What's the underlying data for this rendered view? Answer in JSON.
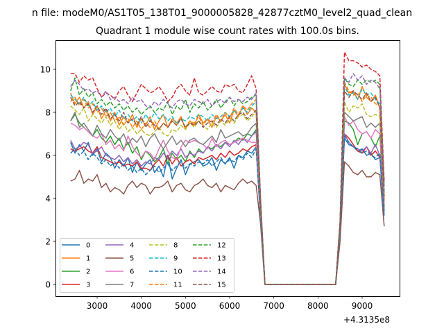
{
  "chart_data": {
    "type": "line",
    "suptitle": "n file: modeM0/AS1T05_138T01_9000005828_42877cztM0_level2_quad_clean",
    "title": "Quadrant 1 module wise count rates with 100.0s bins.",
    "xlabel": "",
    "ylabel": "",
    "x_offset_label": "+4.3135e8",
    "x_start": 2400,
    "x_step": 100,
    "xlim": [
      2058,
      9848
    ],
    "ylim": [
      -0.55,
      11.35
    ],
    "xticks": [
      3000,
      4000,
      5000,
      6000,
      7000,
      8000,
      9000
    ],
    "yticks": [
      0,
      2,
      4,
      6,
      8,
      10
    ],
    "grid": false,
    "legend_position": "lower-left",
    "series": [
      {
        "name": "0",
        "color": "#1f77b4",
        "style": "solid",
        "values": [
          6.6,
          6.1,
          6.5,
          6.2,
          6.6,
          6.0,
          6.3,
          5.7,
          6.1,
          5.9,
          5.4,
          5.8,
          5.5,
          5.9,
          5.2,
          5.7,
          5.3,
          5.6,
          5.8,
          5.2,
          5.5,
          5.0,
          6.0,
          4.9,
          5.4,
          5.8,
          5.1,
          5.6,
          5.7,
          5.8,
          5.5,
          5.6,
          5.9,
          5.3,
          5.8,
          5.6,
          5.9,
          5.4,
          6.0,
          5.9,
          6.2,
          6.1,
          6.4,
          3.0,
          0,
          0,
          0,
          0,
          0,
          0,
          0,
          0,
          0,
          0,
          0,
          0,
          0,
          0,
          0,
          0,
          0,
          2.3,
          6.8,
          6.5,
          6.4,
          6.2,
          6.3,
          6.0,
          6.1,
          5.8,
          5.9,
          3.2
        ]
      },
      {
        "name": "1",
        "color": "#ff7f0e",
        "style": "solid",
        "values": [
          8.9,
          8.4,
          8.7,
          8.2,
          8.5,
          7.9,
          8.3,
          7.7,
          8.1,
          7.6,
          8.0,
          7.4,
          7.8,
          7.5,
          7.9,
          7.3,
          7.7,
          7.4,
          7.8,
          7.2,
          7.6,
          7.9,
          7.3,
          7.7,
          7.5,
          7.8,
          7.2,
          7.6,
          7.4,
          7.9,
          7.5,
          7.7,
          7.3,
          7.8,
          7.6,
          7.9,
          7.5,
          8.1,
          7.8,
          8.3,
          7.9,
          8.2,
          8.0,
          3.5,
          0,
          0,
          0,
          0,
          0,
          0,
          0,
          0,
          0,
          0,
          0,
          0,
          0,
          0,
          0,
          0,
          0,
          2.6,
          9.3,
          8.9,
          9.0,
          8.6,
          9.2,
          8.7,
          8.5,
          8.8,
          8.2,
          4.0
        ]
      },
      {
        "name": "2",
        "color": "#2ca02c",
        "style": "solid",
        "values": [
          7.6,
          7.9,
          7.5,
          7.3,
          7.1,
          6.9,
          7.2,
          6.8,
          6.6,
          6.9,
          6.5,
          6.8,
          6.3,
          6.6,
          6.1,
          6.4,
          5.8,
          6.2,
          6.0,
          5.7,
          5.9,
          6.3,
          5.6,
          6.1,
          5.8,
          6.0,
          5.7,
          6.2,
          5.9,
          6.3,
          6.1,
          6.4,
          6.3,
          6.5,
          6.4,
          6.6,
          6.5,
          6.6,
          6.8,
          6.7,
          7.0,
          6.9,
          7.2,
          3.3,
          0,
          0,
          0,
          0,
          0,
          0,
          0,
          0,
          0,
          0,
          0,
          0,
          0,
          0,
          0,
          0,
          0,
          2.4,
          7.6,
          7.5,
          7.2,
          6.5,
          7.0,
          7.1,
          6.8,
          6.4,
          6.9,
          3.6
        ]
      },
      {
        "name": "3",
        "color": "#d62728",
        "style": "solid",
        "values": [
          6.3,
          6.2,
          6.3,
          6.4,
          6.2,
          6.1,
          6.4,
          5.9,
          5.8,
          5.7,
          5.6,
          5.7,
          5.5,
          5.6,
          5.5,
          5.7,
          5.4,
          5.4,
          5.3,
          5.6,
          5.8,
          5.5,
          6.0,
          5.6,
          5.9,
          5.5,
          5.7,
          5.8,
          5.6,
          5.9,
          5.8,
          5.9,
          6.0,
          5.8,
          6.1,
          5.9,
          6.2,
          6.0,
          6.1,
          6.3,
          6.2,
          6.4,
          6.5,
          3.1,
          0,
          0,
          0,
          0,
          0,
          0,
          0,
          0,
          0,
          0,
          0,
          0,
          0,
          0,
          0,
          0,
          0,
          2.5,
          7.0,
          6.8,
          6.5,
          6.2,
          6.1,
          6.4,
          6.0,
          6.2,
          5.9,
          4.4
        ]
      },
      {
        "name": "4",
        "color": "#9467bd",
        "style": "solid",
        "values": [
          6.7,
          6.3,
          6.4,
          6.6,
          6.5,
          6.1,
          6.2,
          6.4,
          6.0,
          5.9,
          5.8,
          6.0,
          5.7,
          5.9,
          5.6,
          5.8,
          5.5,
          5.7,
          5.6,
          5.9,
          5.8,
          6.1,
          5.9,
          6.2,
          6.0,
          6.3,
          5.9,
          6.1,
          6.0,
          6.2,
          6.1,
          6.4,
          6.2,
          6.5,
          6.3,
          6.6,
          6.4,
          6.7,
          6.5,
          6.8,
          6.6,
          6.9,
          7.1,
          3.4,
          0,
          0,
          0,
          0,
          0,
          0,
          0,
          0,
          0,
          0,
          0,
          0,
          0,
          0,
          0,
          0,
          0,
          2.4,
          7.0,
          6.6,
          6.4,
          6.3,
          6.2,
          6.4,
          6.1,
          6.5,
          6.0,
          3.5
        ]
      },
      {
        "name": "5",
        "color": "#8c564b",
        "style": "solid",
        "values": [
          4.8,
          4.9,
          5.3,
          4.7,
          4.9,
          4.8,
          5.1,
          4.5,
          4.7,
          4.3,
          4.5,
          4.4,
          4.2,
          4.6,
          4.8,
          4.5,
          4.7,
          4.6,
          4.2,
          4.5,
          4.5,
          4.6,
          4.8,
          4.3,
          4.6,
          4.7,
          4.4,
          4.3,
          4.6,
          4.7,
          4.9,
          4.6,
          4.5,
          4.7,
          4.3,
          4.6,
          4.5,
          4.4,
          4.7,
          4.9,
          4.7,
          4.8,
          4.6,
          2.8,
          0,
          0,
          0,
          0,
          0,
          0,
          0,
          0,
          0,
          0,
          0,
          0,
          0,
          0,
          0,
          0,
          0,
          2.0,
          5.7,
          5.5,
          5.2,
          5.1,
          5.3,
          5.0,
          5.0,
          5.2,
          5.1,
          2.7
        ]
      },
      {
        "name": "6",
        "color": "#e377c2",
        "style": "solid",
        "values": [
          7.5,
          7.4,
          7.2,
          7.3,
          7.1,
          6.9,
          6.8,
          7.0,
          6.5,
          6.7,
          6.3,
          6.5,
          6.2,
          6.9,
          6.4,
          6.1,
          5.9,
          6.2,
          6.1,
          5.8,
          6.3,
          6.7,
          6.2,
          5.9,
          5.8,
          6.4,
          6.7,
          6.6,
          6.7,
          6.6,
          6.5,
          6.3,
          6.8,
          6.4,
          6.6,
          6.7,
          6.5,
          6.6,
          6.7,
          6.8,
          6.7,
          6.6,
          6.6,
          3.2,
          0,
          0,
          0,
          0,
          0,
          0,
          0,
          0,
          0,
          0,
          0,
          0,
          0,
          0,
          0,
          0,
          0,
          2.6,
          7.8,
          7.4,
          7.6,
          7.2,
          7.0,
          7.1,
          6.8,
          7.2,
          7.0,
          3.8
        ]
      },
      {
        "name": "7",
        "color": "#7f7f7f",
        "style": "solid",
        "values": [
          7.6,
          8.0,
          7.3,
          7.5,
          7.2,
          6.9,
          7.4,
          7.0,
          6.8,
          7.2,
          6.9,
          6.7,
          7.0,
          6.5,
          6.8,
          6.6,
          6.9,
          6.4,
          6.8,
          7.0,
          6.6,
          6.3,
          6.6,
          6.9,
          6.5,
          6.7,
          6.4,
          6.7,
          6.8,
          6.6,
          6.5,
          6.7,
          6.9,
          6.6,
          7.2,
          6.8,
          6.9,
          7.0,
          7.1,
          6.9,
          7.0,
          7.3,
          7.5,
          3.5,
          0,
          0,
          0,
          0,
          0,
          0,
          0,
          0,
          0,
          0,
          0,
          0,
          0,
          0,
          0,
          0,
          0,
          2.6,
          8.0,
          7.8,
          7.6,
          7.7,
          7.8,
          7.3,
          7.5,
          7.3,
          7.5,
          3.9
        ]
      },
      {
        "name": "8",
        "color": "#bcbd22",
        "style": "dashed",
        "values": [
          8.3,
          8.1,
          7.9,
          8.2,
          7.6,
          7.9,
          7.7,
          7.5,
          7.8,
          7.4,
          7.6,
          7.2,
          7.5,
          7.1,
          7.3,
          7.0,
          7.2,
          7.0,
          6.9,
          7.1,
          7.3,
          7.0,
          6.9,
          7.2,
          7.1,
          7.4,
          7.2,
          7.5,
          7.3,
          7.6,
          7.4,
          7.2,
          7.5,
          7.3,
          7.6,
          7.4,
          7.7,
          7.5,
          7.8,
          7.9,
          7.6,
          7.8,
          8.0,
          3.6,
          0,
          0,
          0,
          0,
          0,
          0,
          0,
          0,
          0,
          0,
          0,
          0,
          0,
          0,
          0,
          0,
          0,
          2.7,
          8.5,
          8.0,
          8.3,
          8.2,
          8.4,
          7.9,
          7.8,
          7.9,
          7.8,
          4.2
        ]
      },
      {
        "name": "9",
        "color": "#17becf",
        "style": "dashed",
        "values": [
          8.8,
          8.6,
          8.4,
          8.7,
          8.3,
          8.5,
          8.1,
          8.3,
          8.0,
          8.2,
          7.8,
          8.1,
          7.7,
          7.9,
          7.6,
          7.8,
          7.5,
          7.9,
          7.6,
          8.0,
          7.7,
          7.9,
          7.6,
          7.8,
          7.5,
          7.7,
          7.6,
          7.8,
          7.7,
          7.9,
          7.8,
          7.6,
          7.9,
          7.7,
          7.8,
          8.0,
          7.8,
          8.1,
          7.9,
          8.2,
          8.0,
          8.3,
          8.5,
          3.7,
          0,
          0,
          0,
          0,
          0,
          0,
          0,
          0,
          0,
          0,
          0,
          0,
          0,
          0,
          0,
          0,
          0,
          2.8,
          9.2,
          8.8,
          8.9,
          8.6,
          9.1,
          8.8,
          8.9,
          8.6,
          8.4,
          4.3
        ]
      },
      {
        "name": "10",
        "color": "#1f77b4",
        "style": "dashed",
        "values": [
          6.1,
          6.3,
          6.0,
          6.2,
          5.8,
          6.1,
          5.9,
          5.6,
          5.8,
          5.5,
          5.7,
          5.4,
          5.6,
          5.3,
          5.5,
          5.2,
          5.4,
          5.1,
          5.3,
          5.5,
          5.2,
          5.4,
          5.6,
          5.3,
          5.5,
          5.7,
          5.4,
          5.6,
          5.5,
          5.7,
          5.6,
          5.8,
          5.5,
          5.7,
          5.9,
          5.6,
          5.8,
          5.7,
          6.0,
          5.8,
          6.1,
          5.9,
          6.3,
          3.0,
          0,
          0,
          0,
          0,
          0,
          0,
          0,
          0,
          0,
          0,
          0,
          0,
          0,
          0,
          0,
          0,
          0,
          2.3,
          6.9,
          6.6,
          6.4,
          6.3,
          6.1,
          6.2,
          6.0,
          5.9,
          6.1,
          3.4
        ]
      },
      {
        "name": "11",
        "color": "#ff7f0e",
        "style": "dashed",
        "values": [
          8.5,
          8.7,
          8.3,
          8.6,
          8.2,
          8.4,
          8.0,
          8.2,
          7.8,
          8.0,
          7.6,
          7.8,
          7.4,
          7.7,
          7.3,
          7.6,
          7.2,
          7.5,
          7.3,
          7.6,
          7.2,
          7.5,
          7.3,
          7.6,
          7.4,
          7.7,
          7.3,
          7.6,
          7.5,
          7.8,
          7.4,
          7.7,
          7.5,
          7.9,
          7.6,
          8.0,
          7.7,
          8.2,
          7.9,
          8.3,
          8.1,
          8.4,
          8.6,
          3.6,
          0,
          0,
          0,
          0,
          0,
          0,
          0,
          0,
          0,
          0,
          0,
          0,
          0,
          0,
          0,
          0,
          0,
          2.7,
          9.4,
          9.0,
          8.8,
          8.9,
          8.5,
          8.8,
          8.7,
          8.4,
          8.3,
          4.0
        ]
      },
      {
        "name": "12",
        "color": "#2ca02c",
        "style": "dashed",
        "values": [
          9.0,
          9.6,
          8.8,
          9.1,
          8.7,
          8.9,
          8.4,
          8.6,
          8.3,
          8.5,
          8.2,
          8.4,
          8.1,
          8.3,
          8.0,
          8.2,
          7.9,
          8.1,
          8.3,
          8.0,
          8.2,
          8.1,
          8.5,
          7.9,
          8.3,
          8.1,
          8.6,
          8.0,
          8.4,
          8.2,
          8.5,
          8.1,
          8.3,
          8.6,
          8.2,
          8.5,
          8.7,
          8.3,
          8.6,
          8.4,
          8.5,
          8.7,
          8.8,
          3.9,
          0,
          0,
          0,
          0,
          0,
          0,
          0,
          0,
          0,
          0,
          0,
          0,
          0,
          0,
          0,
          0,
          0,
          2.9,
          9.6,
          9.3,
          9.2,
          9.5,
          9.3,
          9.5,
          9.4,
          9.5,
          9.3,
          4.6
        ]
      },
      {
        "name": "13",
        "color": "#d62728",
        "style": "dashed",
        "values": [
          9.8,
          9.8,
          9.4,
          9.7,
          9.5,
          9.6,
          9.1,
          8.7,
          8.9,
          8.8,
          8.6,
          9.0,
          9.2,
          8.8,
          8.5,
          8.9,
          9.3,
          9.1,
          8.9,
          9.0,
          9.2,
          8.9,
          8.5,
          8.7,
          9.1,
          9.3,
          9.0,
          8.8,
          9.6,
          8.9,
          8.8,
          9.0,
          9.2,
          9.0,
          8.9,
          9.3,
          9.2,
          9.3,
          9.0,
          8.9,
          9.3,
          9.7,
          9.1,
          4.0,
          0,
          0,
          0,
          0,
          0,
          0,
          0,
          0,
          0,
          0,
          0,
          0,
          0,
          0,
          0,
          0,
          0,
          3.0,
          10.8,
          10.4,
          10.4,
          10.3,
          10.1,
          10.2,
          10.0,
          9.9,
          9.7,
          4.8
        ]
      },
      {
        "name": "14",
        "color": "#9467bd",
        "style": "dashed",
        "values": [
          9.2,
          9.5,
          9.3,
          9.0,
          9.1,
          8.9,
          9.0,
          8.7,
          9.0,
          8.6,
          8.7,
          8.5,
          8.6,
          8.4,
          8.7,
          8.5,
          8.6,
          8.3,
          8.2,
          8.5,
          8.3,
          8.6,
          8.4,
          8.2,
          8.5,
          8.6,
          8.4,
          8.3,
          8.6,
          8.5,
          8.4,
          8.6,
          8.3,
          8.5,
          8.6,
          8.4,
          8.7,
          8.5,
          8.6,
          8.5,
          8.7,
          8.6,
          8.9,
          3.8,
          0,
          0,
          0,
          0,
          0,
          0,
          0,
          0,
          0,
          0,
          0,
          0,
          0,
          0,
          0,
          0,
          0,
          2.9,
          9.6,
          9.4,
          9.8,
          9.5,
          9.7,
          9.3,
          9.5,
          9.4,
          9.1,
          4.5
        ]
      },
      {
        "name": "15",
        "color": "#8c564b",
        "style": "dashed",
        "values": [
          8.7,
          8.3,
          8.5,
          8.2,
          8.4,
          8.0,
          8.3,
          7.9,
          8.2,
          7.7,
          7.9,
          7.6,
          8.0,
          7.5,
          7.7,
          7.4,
          7.8,
          7.3,
          7.6,
          7.4,
          7.2,
          7.5,
          7.3,
          7.6,
          7.4,
          7.7,
          7.3,
          7.5,
          7.4,
          7.6,
          7.3,
          7.5,
          7.6,
          7.4,
          7.7,
          7.5,
          7.8,
          7.6,
          7.9,
          8.0,
          7.7,
          7.9,
          8.1,
          3.7,
          0,
          0,
          0,
          0,
          0,
          0,
          0,
          0,
          0,
          0,
          0,
          0,
          0,
          0,
          0,
          0,
          0,
          2.8,
          9.0,
          8.7,
          9.0,
          8.8,
          8.6,
          8.9,
          8.5,
          8.7,
          8.2,
          4.1
        ]
      }
    ]
  }
}
